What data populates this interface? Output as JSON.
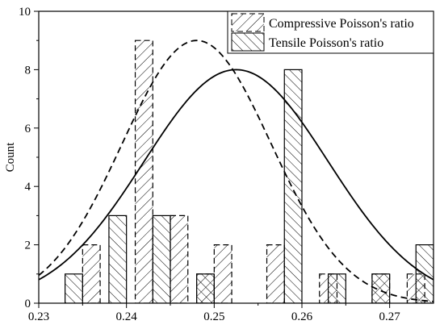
{
  "chart_data": {
    "type": "bar",
    "xlim": [
      0.23,
      0.275
    ],
    "ylim": [
      0,
      10
    ],
    "xticks": [
      0.23,
      0.24,
      0.25,
      0.26,
      0.27
    ],
    "xtick_labels": [
      "0.23",
      "0.24",
      "0.25",
      "0.26",
      "0.27"
    ],
    "yticks": [
      0,
      2,
      4,
      6,
      8,
      10
    ],
    "ytick_labels": [
      "0",
      "2",
      "4",
      "6",
      "8",
      "10"
    ],
    "ylabel": "Count",
    "xlabel": "",
    "bin_width": 0.002,
    "grid": false,
    "legend_position": "top-right",
    "series": [
      {
        "name": "Compressive Poisson's ratio",
        "hatch": "forward-diagonal",
        "edge_style": "dashed",
        "bins": [
          {
            "x": 0.236,
            "count": 2
          },
          {
            "x": 0.242,
            "count": 9
          },
          {
            "x": 0.246,
            "count": 3
          },
          {
            "x": 0.249,
            "count": 1
          },
          {
            "x": 0.251,
            "count": 2
          },
          {
            "x": 0.257,
            "count": 2
          },
          {
            "x": 0.263,
            "count": 1
          },
          {
            "x": 0.269,
            "count": 1
          },
          {
            "x": 0.273,
            "count": 1
          }
        ],
        "fit_curve": {
          "style": "dashed",
          "mean": 0.248,
          "sd": 0.0085,
          "peak": 9
        }
      },
      {
        "name": "Tensile Poisson's ratio",
        "hatch": "back-diagonal",
        "edge_style": "solid",
        "bins": [
          {
            "x": 0.234,
            "count": 1
          },
          {
            "x": 0.239,
            "count": 3
          },
          {
            "x": 0.244,
            "count": 3
          },
          {
            "x": 0.249,
            "count": 1
          },
          {
            "x": 0.259,
            "count": 8
          },
          {
            "x": 0.264,
            "count": 1
          },
          {
            "x": 0.269,
            "count": 1
          },
          {
            "x": 0.274,
            "count": 2
          }
        ],
        "fit_curve": {
          "style": "solid",
          "mean": 0.2525,
          "sd": 0.0105,
          "peak": 8
        }
      }
    ]
  }
}
